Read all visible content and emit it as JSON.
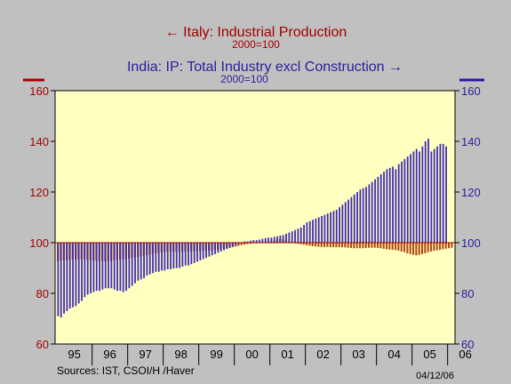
{
  "titles": {
    "left_series": "Italy: Industrial Production",
    "left_base": "2000=100",
    "right_series": "India: IP: Total Industry excl Construction",
    "right_base": "2000=100",
    "left_arrow": "←",
    "right_arrow": "→"
  },
  "footer": {
    "sources": "Sources:  IST, CSOI/H /Haver",
    "date": "04/12/06"
  },
  "colors": {
    "italy": "#a52a00",
    "italy_bar": "#b04a14",
    "india": "#3c28b4",
    "plot_bg": "#ffffc0",
    "page_bg": "#c0c0c0",
    "axis_left": "#a50000",
    "axis_right": "#2a1e9a"
  },
  "chart_data": {
    "type": "bar",
    "baseline": 100,
    "ylim": [
      60,
      160
    ],
    "left_yticks": [
      60,
      80,
      100,
      120,
      140,
      160
    ],
    "right_yticks": [
      60,
      80,
      100,
      120,
      140,
      160
    ],
    "x_tick_labels": [
      "95",
      "96",
      "97",
      "98",
      "99",
      "00",
      "01",
      "02",
      "03",
      "04",
      "05",
      "06"
    ],
    "x_start": "1995-01",
    "legend": "top-center",
    "grid": false,
    "series": [
      {
        "name": "Italy: Industrial Production",
        "axis": "left",
        "values": [
          92.5,
          92.8,
          93,
          93.1,
          93.2,
          93.3,
          93.4,
          93.5,
          93.5,
          93.4,
          93.3,
          93.2,
          93,
          92.9,
          92.8,
          92.7,
          92.6,
          92.7,
          92.8,
          93,
          93.1,
          93.2,
          93.4,
          93.5,
          93.7,
          93.9,
          94.1,
          94.3,
          94.5,
          94.8,
          95,
          95.3,
          95.5,
          95.8,
          96,
          96.2,
          96.3,
          96.4,
          96.4,
          96.4,
          96.4,
          96.4,
          96.4,
          96.4,
          96.4,
          96.5,
          96.5,
          96.6,
          96.6,
          96.7,
          96.8,
          96.9,
          97,
          97.1,
          97.2,
          97.4,
          97.6,
          97.8,
          98,
          98.2,
          98.5,
          98.7,
          99,
          99.2,
          99.4,
          99.6,
          99.8,
          100,
          100.1,
          100.2,
          100.3,
          100.4,
          100.6,
          100.8,
          101.2,
          101.6,
          101.4,
          101,
          100.5,
          100.2,
          99.9,
          99.6,
          99.4,
          99.2,
          99,
          98.8,
          98.6,
          98.5,
          98.4,
          98.3,
          98.3,
          98.3,
          98.2,
          98.2,
          98.2,
          98.2,
          98.2,
          98.1,
          98,
          97.9,
          97.8,
          97.8,
          97.8,
          97.8,
          97.9,
          98,
          98,
          98,
          97.9,
          97.8,
          97.6,
          97.4,
          97.3,
          97.2,
          97.1,
          96.9,
          96.5,
          96.3,
          95.8,
          95.5,
          95.2,
          95,
          95.2,
          95.5,
          95.8,
          96.2,
          96.5,
          96.8,
          97,
          97.2,
          97.4,
          97.6,
          97.8,
          98
        ]
      },
      {
        "name": "India: IP: Total Industry excl Construction",
        "axis": "right",
        "values": [
          71,
          70.5,
          72,
          73,
          74,
          74.5,
          75,
          76,
          77,
          78.5,
          79.5,
          80,
          80.5,
          81,
          81,
          81.5,
          82,
          82,
          82,
          81.5,
          81,
          81,
          80.5,
          81,
          82,
          83,
          84,
          85,
          85.5,
          86,
          87,
          87.5,
          88,
          88.5,
          88.5,
          89,
          89,
          89.5,
          89.5,
          89.8,
          90,
          90,
          90.5,
          91,
          91,
          91.5,
          92,
          92.5,
          93,
          93.5,
          94,
          94.5,
          95,
          95.5,
          96,
          96.5,
          97,
          97.5,
          98,
          98.5,
          99,
          99.5,
          100,
          100.5,
          100.5,
          100.8,
          101,
          101,
          101.2,
          101.5,
          101.8,
          102,
          102,
          102.3,
          102.5,
          102.8,
          103,
          103.5,
          104,
          104.5,
          105,
          105.5,
          106,
          107,
          108,
          108.5,
          109,
          109.5,
          110,
          110.5,
          111,
          111.5,
          112,
          112.5,
          113,
          114,
          115,
          116,
          117,
          118,
          119,
          120,
          121,
          121.5,
          122,
          123,
          124,
          125,
          126,
          127,
          128,
          129,
          129.5,
          130,
          129,
          131,
          132,
          133,
          134,
          135,
          136,
          137,
          136,
          138,
          140,
          141,
          136,
          137,
          138,
          139,
          139,
          138
        ]
      }
    ]
  }
}
